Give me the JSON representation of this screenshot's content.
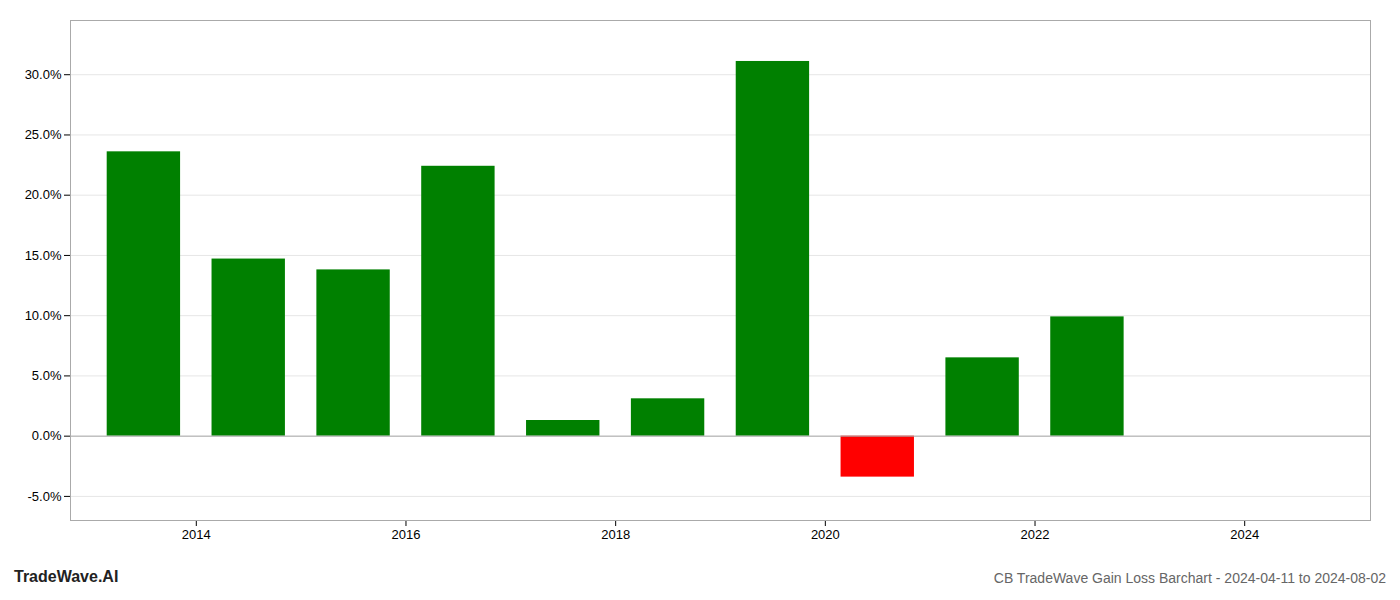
{
  "chart_data": {
    "type": "bar",
    "title": "CB TradeWave Gain Loss Barchart - 2024-04-11 to 2024-08-02",
    "annotations": [
      "TradeWave.AI"
    ],
    "x": [
      2013.5,
      2014.5,
      2015.5,
      2016.5,
      2017.5,
      2018.5,
      2019.5,
      2020.5,
      2021.5,
      2022.5,
      2023.5
    ],
    "values": [
      0.236,
      0.147,
      0.138,
      0.224,
      0.013,
      0.031,
      0.311,
      -0.034,
      0.065,
      0.099,
      0.0
    ],
    "colors": [
      "#008000",
      "#008000",
      "#008000",
      "#008000",
      "#008000",
      "#008000",
      "#008000",
      "#ff0000",
      "#008000",
      "#008000",
      "#008000"
    ],
    "xlim": [
      2012.8,
      2025.2
    ],
    "xticks": [
      2014,
      2016,
      2018,
      2020,
      2022,
      2024
    ],
    "ylim": [
      -0.07,
      0.345
    ],
    "yticks": [
      {
        "value": -0.05,
        "label": "-5.0%"
      },
      {
        "value": 0.0,
        "label": "0.0%"
      },
      {
        "value": 0.05,
        "label": "5.0%"
      },
      {
        "value": 0.1,
        "label": "10.0%"
      },
      {
        "value": 0.15,
        "label": "15.0%"
      },
      {
        "value": 0.2,
        "label": "20.0%"
      },
      {
        "value": 0.25,
        "label": "25.0%"
      },
      {
        "value": 0.3,
        "label": "30.0%"
      }
    ],
    "grid": true
  }
}
